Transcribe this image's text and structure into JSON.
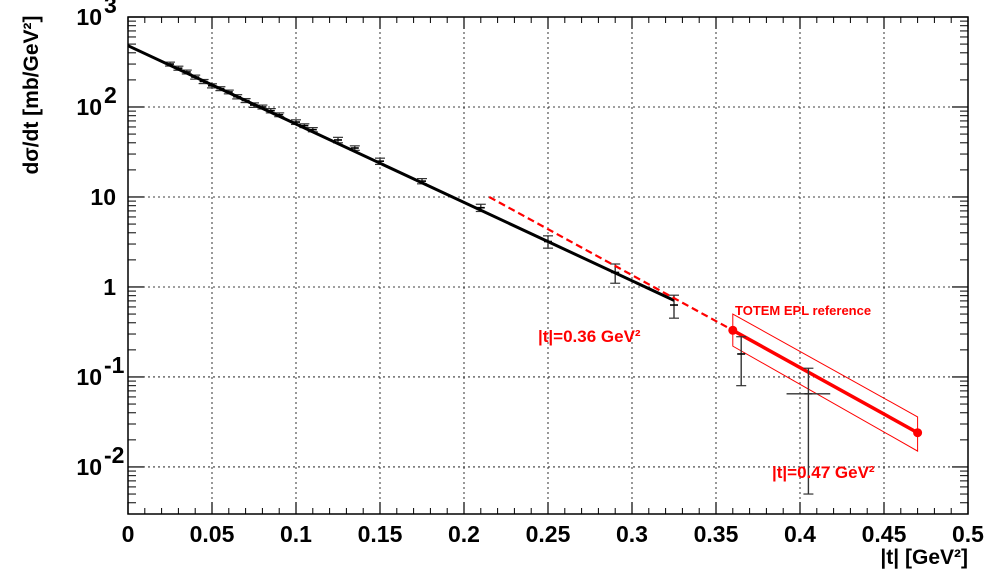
{
  "chart_data": {
    "type": "scatter",
    "xlabel": "|t|  [GeV²]",
    "ylabel": "dσ/dt [mb/GeV²]",
    "xlim": [
      0,
      0.5
    ],
    "ylim": [
      0.003,
      1000
    ],
    "y_scale": "log",
    "grid": true,
    "x_ticks": [
      "0",
      "0.05",
      "0.1",
      "0.15",
      "0.2",
      "0.25",
      "0.3",
      "0.35",
      "0.4",
      "0.45",
      "0.5"
    ],
    "y_ticks": [
      {
        "base": "10",
        "exp": "-2",
        "value": 0.01
      },
      {
        "base": "10",
        "exp": "-1",
        "value": 0.1
      },
      {
        "base": "1",
        "exp": "",
        "value": 1
      },
      {
        "base": "10",
        "exp": "",
        "value": 10
      },
      {
        "base": "10",
        "exp": "2",
        "value": 100
      },
      {
        "base": "10",
        "exp": "3",
        "value": 1000
      }
    ],
    "measurements": [
      {
        "x": 0.025,
        "y": 300,
        "err": 15
      },
      {
        "x": 0.03,
        "y": 270,
        "err": 14
      },
      {
        "x": 0.035,
        "y": 245,
        "err": 12
      },
      {
        "x": 0.04,
        "y": 215,
        "err": 11
      },
      {
        "x": 0.045,
        "y": 192,
        "err": 10
      },
      {
        "x": 0.05,
        "y": 172,
        "err": 9
      },
      {
        "x": 0.055,
        "y": 160,
        "err": 8
      },
      {
        "x": 0.06,
        "y": 147,
        "err": 7
      },
      {
        "x": 0.065,
        "y": 130,
        "err": 7
      },
      {
        "x": 0.07,
        "y": 118,
        "err": 6
      },
      {
        "x": 0.075,
        "y": 105,
        "err": 6
      },
      {
        "x": 0.08,
        "y": 100,
        "err": 5
      },
      {
        "x": 0.085,
        "y": 91,
        "err": 5
      },
      {
        "x": 0.09,
        "y": 82,
        "err": 4
      },
      {
        "x": 0.1,
        "y": 68,
        "err": 4
      },
      {
        "x": 0.105,
        "y": 62,
        "err": 3
      },
      {
        "x": 0.11,
        "y": 56,
        "err": 3
      },
      {
        "x": 0.125,
        "y": 43,
        "err": 3
      },
      {
        "x": 0.135,
        "y": 35,
        "err": 2
      },
      {
        "x": 0.15,
        "y": 25,
        "err": 2
      },
      {
        "x": 0.175,
        "y": 15,
        "err": 1
      },
      {
        "x": 0.21,
        "y": 7.6,
        "err": 0.7
      },
      {
        "x": 0.25,
        "y": 3.2,
        "err": 0.5
      },
      {
        "x": 0.29,
        "y": 1.45,
        "err": 0.35
      },
      {
        "x": 0.325,
        "y": 0.63,
        "err": 0.18
      },
      {
        "x": 0.365,
        "y": 0.18,
        "err": 0.1
      },
      {
        "x": 0.405,
        "y": 0.065,
        "err": 0.06
      }
    ],
    "fit_line": {
      "x": [
        0,
        0.325
      ],
      "y": [
        480,
        0.71
      ],
      "color": "#000000"
    },
    "extrapolation": {
      "x": [
        0.215,
        0.36
      ],
      "y": [
        10,
        0.33
      ],
      "color": "#ff0000",
      "style": "dashed"
    },
    "reference_band": {
      "name": "TOTEM EPL reference",
      "x": [
        0.36,
        0.47
      ],
      "central": [
        0.33,
        0.024
      ],
      "upper": [
        0.5,
        0.036
      ],
      "lower": [
        0.22,
        0.015
      ],
      "color": "#ff0000"
    },
    "annotations": [
      {
        "text": "TOTEM EPL reference"
      },
      {
        "text": "|t|=0.36 GeV²"
      },
      {
        "text": "|t|=0.47 GeV²"
      }
    ]
  }
}
